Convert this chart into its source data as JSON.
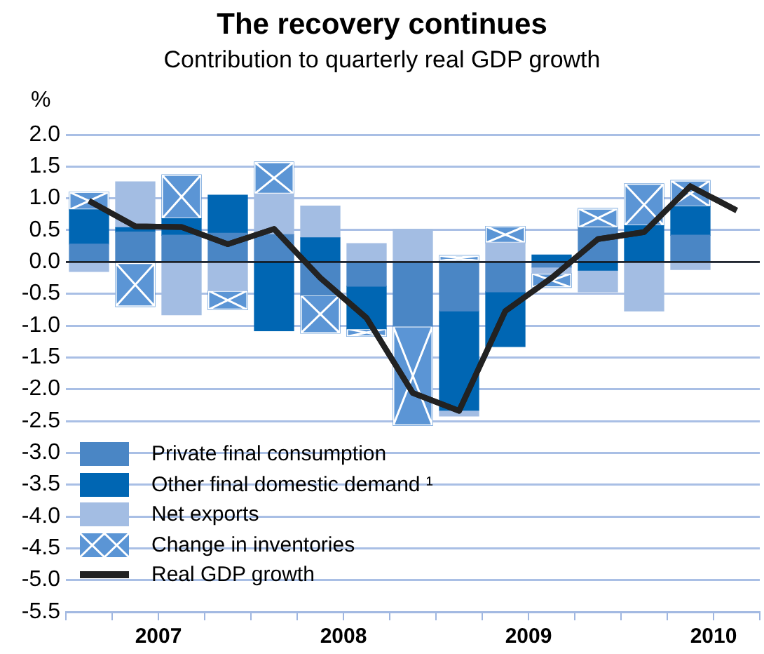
{
  "chart_data": {
    "type": "bar",
    "title": "The recovery continues",
    "subtitle": "Contribution to quarterly real GDP growth",
    "ylabel": "%",
    "x": [
      2007.125,
      2007.375,
      2007.625,
      2007.875,
      2008.125,
      2008.375,
      2008.625,
      2008.875,
      2009.125,
      2009.375,
      2009.625,
      2009.875,
      2010.125,
      2010.375,
      2010.625
    ],
    "stacked": true,
    "series": [
      {
        "name": "Private final consumption",
        "color": "#4a86c5",
        "values": [
          0.28,
          0.47,
          0.42,
          0.45,
          0.43,
          -0.52,
          -0.38,
          -1.01,
          -0.77,
          -0.47,
          -0.08,
          0.54,
          null,
          0.42,
          null
        ]
      },
      {
        "name": "Other final domestic demand ¹",
        "color": "#0066b3",
        "values": [
          0.54,
          0.07,
          0.26,
          0.6,
          -1.08,
          0.38,
          -0.67,
          null,
          -1.56,
          -0.86,
          0.11,
          -0.13,
          0.57,
          0.45,
          null
        ]
      },
      {
        "name": "Net exports",
        "color": "#a3bde3",
        "values": [
          -0.15,
          0.72,
          -0.83,
          -0.45,
          0.64,
          0.5,
          0.29,
          0.51,
          -0.09,
          0.3,
          -0.1,
          -0.34,
          -0.77,
          -0.12,
          null
        ]
      },
      {
        "name": "Change in inventories",
        "color": "#5b95d5",
        "marker": "cross",
        "values": [
          0.28,
          -0.7,
          0.69,
          -0.3,
          0.5,
          -0.6,
          -0.12,
          -1.56,
          0.1,
          0.26,
          -0.22,
          0.3,
          0.66,
          0.41,
          null
        ]
      },
      {
        "name": "Real GDP growth",
        "type": "line",
        "color": "#222222",
        "marker": "none",
        "values": [
          0.96,
          0.56,
          0.55,
          0.28,
          0.52,
          -0.25,
          -0.88,
          -2.06,
          -2.34,
          -0.77,
          -0.25,
          0.36,
          0.47,
          1.19,
          0.81
        ]
      }
    ],
    "xlim": [
      2007,
      2010.75
    ],
    "xticks": [
      {
        "value": 2007,
        "label": null
      },
      {
        "value": 2007.25,
        "label": null
      },
      {
        "value": 2007.5,
        "label": "2007"
      },
      {
        "value": 2007.75,
        "label": null
      },
      {
        "value": 2008,
        "label": null
      },
      {
        "value": 2008.25,
        "label": null
      },
      {
        "value": 2008.5,
        "label": "2008"
      },
      {
        "value": 2008.75,
        "label": null
      },
      {
        "value": 2009,
        "label": null
      },
      {
        "value": 2009.25,
        "label": null
      },
      {
        "value": 2009.5,
        "label": "2009"
      },
      {
        "value": 2009.75,
        "label": null
      },
      {
        "value": 2010,
        "label": null
      },
      {
        "value": 2010.25,
        "label": null
      },
      {
        "value": 2010.5,
        "label": "2010"
      },
      {
        "value": 2010.75,
        "label": null
      }
    ],
    "ylim": [
      -5.5,
      2
    ],
    "yticks": [
      {
        "value": 2,
        "label": "2.0"
      },
      1.5,
      {
        "value": 1,
        "label": "1.0"
      },
      0.5,
      {
        "value": 0,
        "label": "0.0"
      },
      -0.5,
      {
        "value": -1,
        "label": "-1.0"
      },
      -1.5,
      {
        "value": -2,
        "label": "-2.0"
      },
      -2.5,
      {
        "value": -3,
        "label": "-3.0"
      },
      -3.5,
      {
        "value": -4,
        "label": "-4.0"
      },
      -4.5,
      {
        "value": -5,
        "label": "-5.0"
      },
      -5.5
    ],
    "ref_lines": [
      {
        "axis": "y",
        "value": 0,
        "color": "#000000"
      }
    ],
    "grid": "y",
    "legend": "bottom left"
  }
}
